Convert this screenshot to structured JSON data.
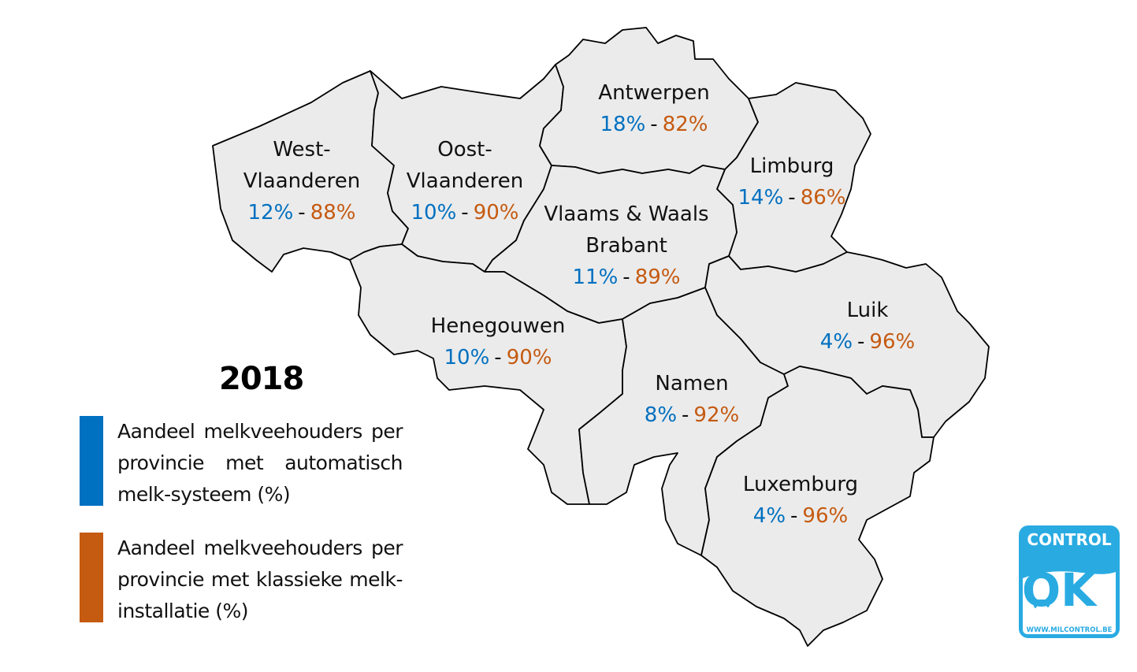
{
  "year": "2018",
  "colors": {
    "automatic": "#0070c0",
    "classic": "#c55a11",
    "region_fill": "#ebebeb",
    "border": "#000000"
  },
  "provinces": [
    {
      "id": "west-vlaanderen",
      "name_lines": [
        "West-",
        "Vlaanderen"
      ],
      "automatic_pct": "12%",
      "classic_pct": "88%"
    },
    {
      "id": "oost-vlaanderen",
      "name_lines": [
        "Oost-",
        "Vlaanderen"
      ],
      "automatic_pct": "10%",
      "classic_pct": "90%"
    },
    {
      "id": "antwerpen",
      "name_lines": [
        "Antwerpen"
      ],
      "automatic_pct": "18%",
      "classic_pct": "82%"
    },
    {
      "id": "limburg",
      "name_lines": [
        "Limburg"
      ],
      "automatic_pct": "14%",
      "classic_pct": "86%"
    },
    {
      "id": "brabant",
      "name_lines": [
        "Vlaams & Waals",
        "Brabant"
      ],
      "automatic_pct": "11%",
      "classic_pct": "89%"
    },
    {
      "id": "henegouwen",
      "name_lines": [
        "Henegouwen"
      ],
      "automatic_pct": "10%",
      "classic_pct": "90%"
    },
    {
      "id": "namen",
      "name_lines": [
        "Namen"
      ],
      "automatic_pct": "8%",
      "classic_pct": "92%"
    },
    {
      "id": "luik",
      "name_lines": [
        "Luik"
      ],
      "automatic_pct": "4%",
      "classic_pct": "96%"
    },
    {
      "id": "luxemburg",
      "name_lines": [
        "Luxemburg"
      ],
      "automatic_pct": "4%",
      "classic_pct": "96%"
    }
  ],
  "separator": "-",
  "legend": {
    "automatic": "Aandeel melkveehouders per provincie met automatisch melk-systeem (%)",
    "classic": "Aandeel melkveehouders per provincie met klassieke melk-installatie (%)"
  },
  "logo": {
    "top": "CONTROL",
    "main": "OK",
    "url": "WWW.MILCONTROL.BE"
  }
}
